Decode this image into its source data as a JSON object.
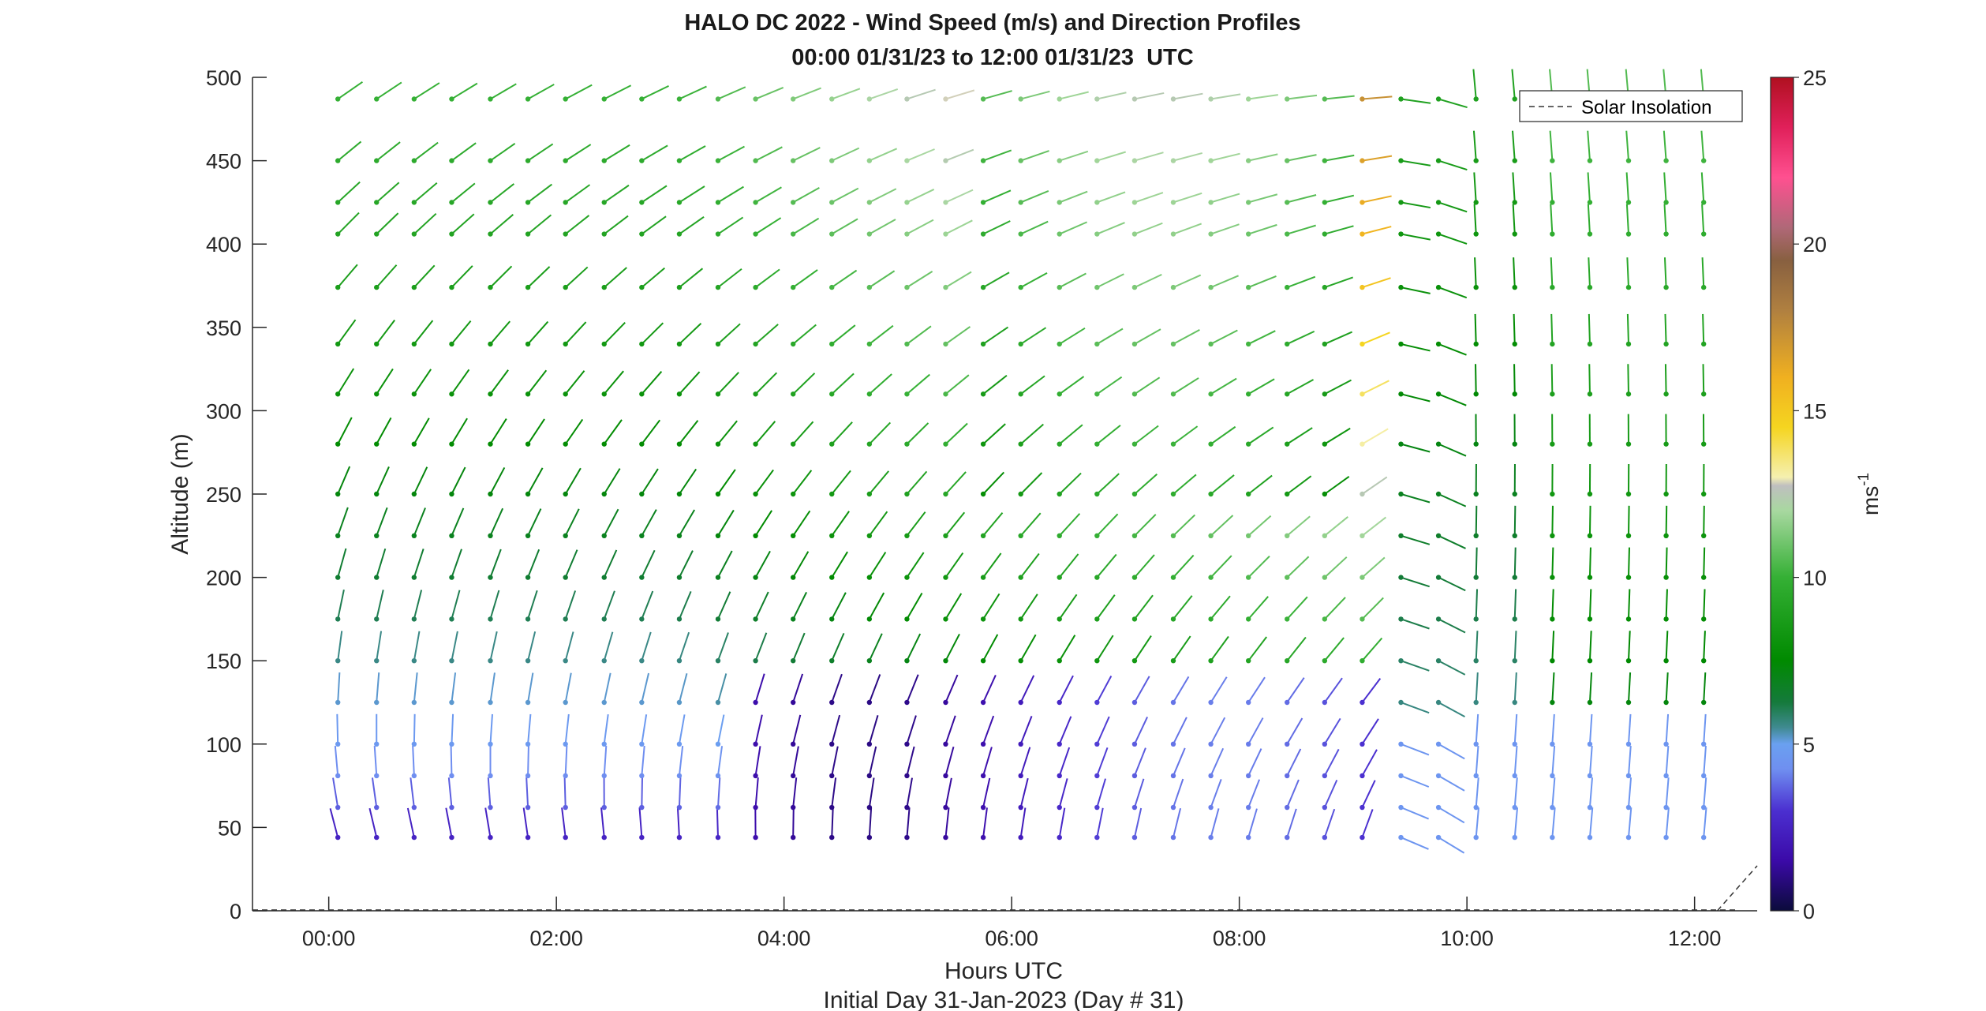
{
  "chart_data": {
    "type": "scatter",
    "title": "HALO DC 2022 - Wind Speed (m/s) and Direction Profiles",
    "subtitle": "00:00 01/31/23 to 12:00 01/31/23  UTC",
    "xlabel": "Hours UTC",
    "ylabel": "Altitude (m)",
    "footnote": "Initial Day 31-Jan-2023 (Day # 31)",
    "xlim": [
      -0.67,
      12.55
    ],
    "ylim": [
      0,
      500
    ],
    "x_ticks": [
      0,
      2,
      4,
      6,
      8,
      10,
      12
    ],
    "x_tick_labels": [
      "00:00",
      "02:00",
      "04:00",
      "06:00",
      "08:00",
      "10:00",
      "12:00"
    ],
    "y_ticks": [
      0,
      50,
      100,
      150,
      200,
      250,
      300,
      350,
      400,
      450,
      500
    ],
    "y_tick_labels": [
      "0",
      "50",
      "100",
      "150",
      "200",
      "250",
      "300",
      "350",
      "400",
      "450",
      "500"
    ],
    "grid": false,
    "legend": {
      "position": "top-right",
      "entries": [
        "Solar Insolation"
      ]
    },
    "colorbar": {
      "label": "ms",
      "label_superscript": "-1",
      "range": [
        0,
        25
      ],
      "ticks": [
        0,
        5,
        10,
        15,
        20,
        25
      ],
      "tick_labels": [
        "0",
        "5",
        "10",
        "15",
        "20",
        "25"
      ]
    },
    "barb_times_hours": [
      0.08,
      0.42,
      0.75,
      1.08,
      1.42,
      1.75,
      2.08,
      2.42,
      2.75,
      3.08,
      3.42,
      3.75,
      4.08,
      4.42,
      4.75,
      5.08,
      5.42,
      5.75,
      6.08,
      6.42,
      6.75,
      7.08,
      7.42,
      7.75,
      8.08,
      8.42,
      8.75,
      9.08,
      9.42,
      9.75,
      10.08,
      10.42,
      10.75,
      11.08,
      11.42,
      11.75,
      12.08
    ],
    "barb_altitudes_m": [
      44,
      62,
      81,
      100,
      125,
      150,
      175,
      200,
      225,
      250,
      280,
      310,
      340,
      374,
      406,
      425,
      450,
      487
    ],
    "solar_insolation": {
      "x": [
        12.2,
        12.55
      ],
      "y": [
        0,
        27
      ]
    },
    "note_fields": "Each barb: dot at observation point (time, altitude); line points toward the wind source direction; color encodes wind speed (m/s) per colorbar."
  }
}
